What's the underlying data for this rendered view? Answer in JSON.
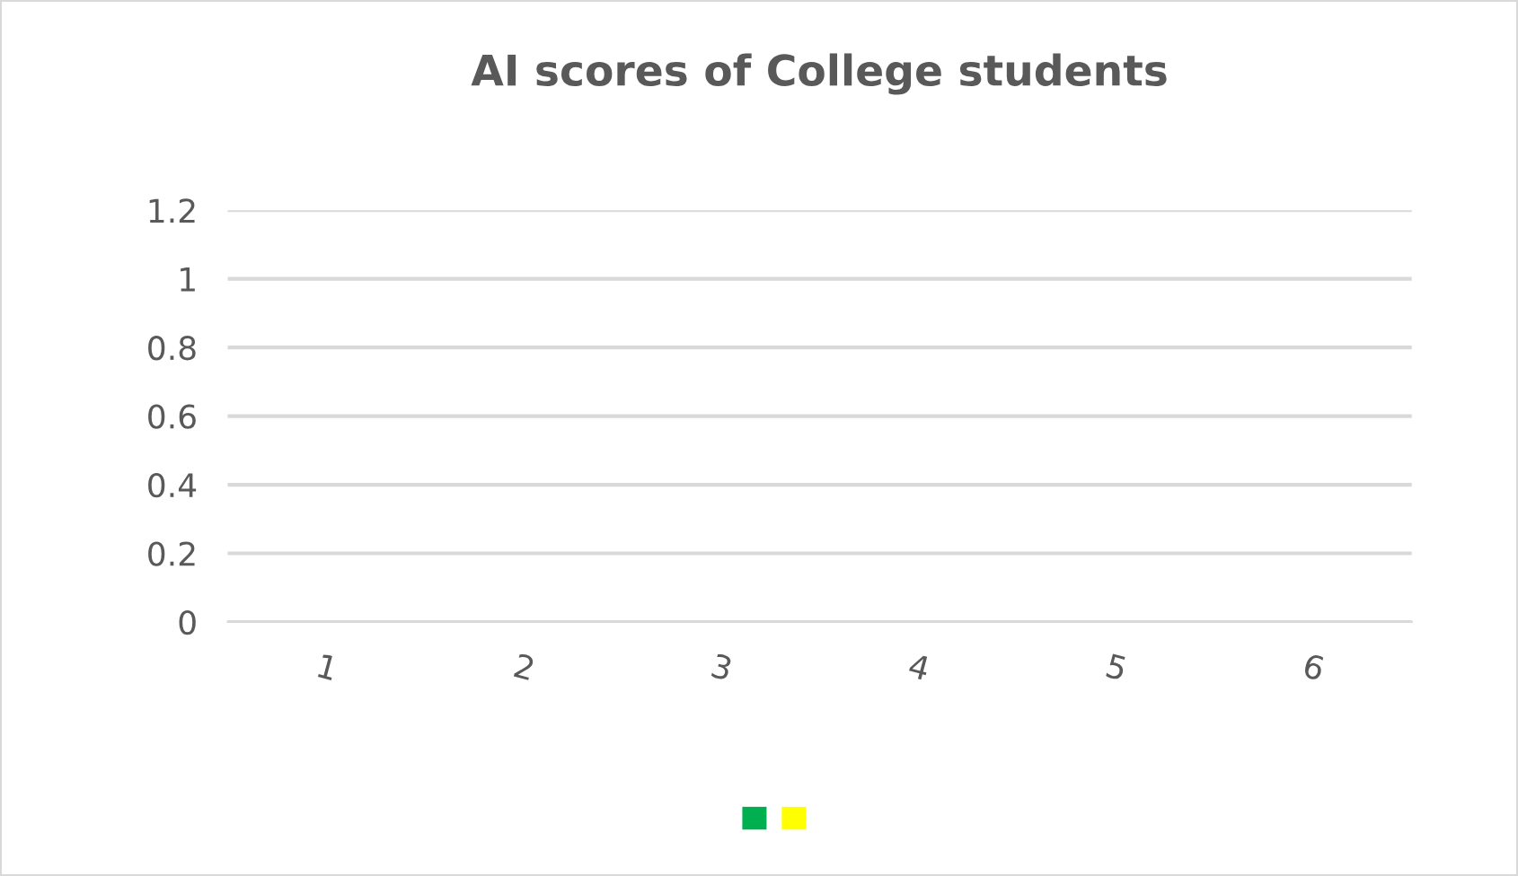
{
  "chart_data": {
    "type": "bar",
    "title": "AI scores of College students",
    "categories": [
      "1",
      "2",
      "3",
      "4",
      "5",
      "6"
    ],
    "series": [
      {
        "color": "#00b050",
        "values": [
          0,
          0,
          0,
          0,
          0,
          0
        ]
      },
      {
        "color": "#ffff00",
        "values": [
          0,
          0,
          0,
          0,
          0,
          0
        ]
      }
    ],
    "ylim": [
      0,
      1.2
    ],
    "yticks": [
      0,
      0.2,
      0.4,
      0.6,
      0.8,
      1,
      1.2
    ],
    "grid": "y"
  }
}
